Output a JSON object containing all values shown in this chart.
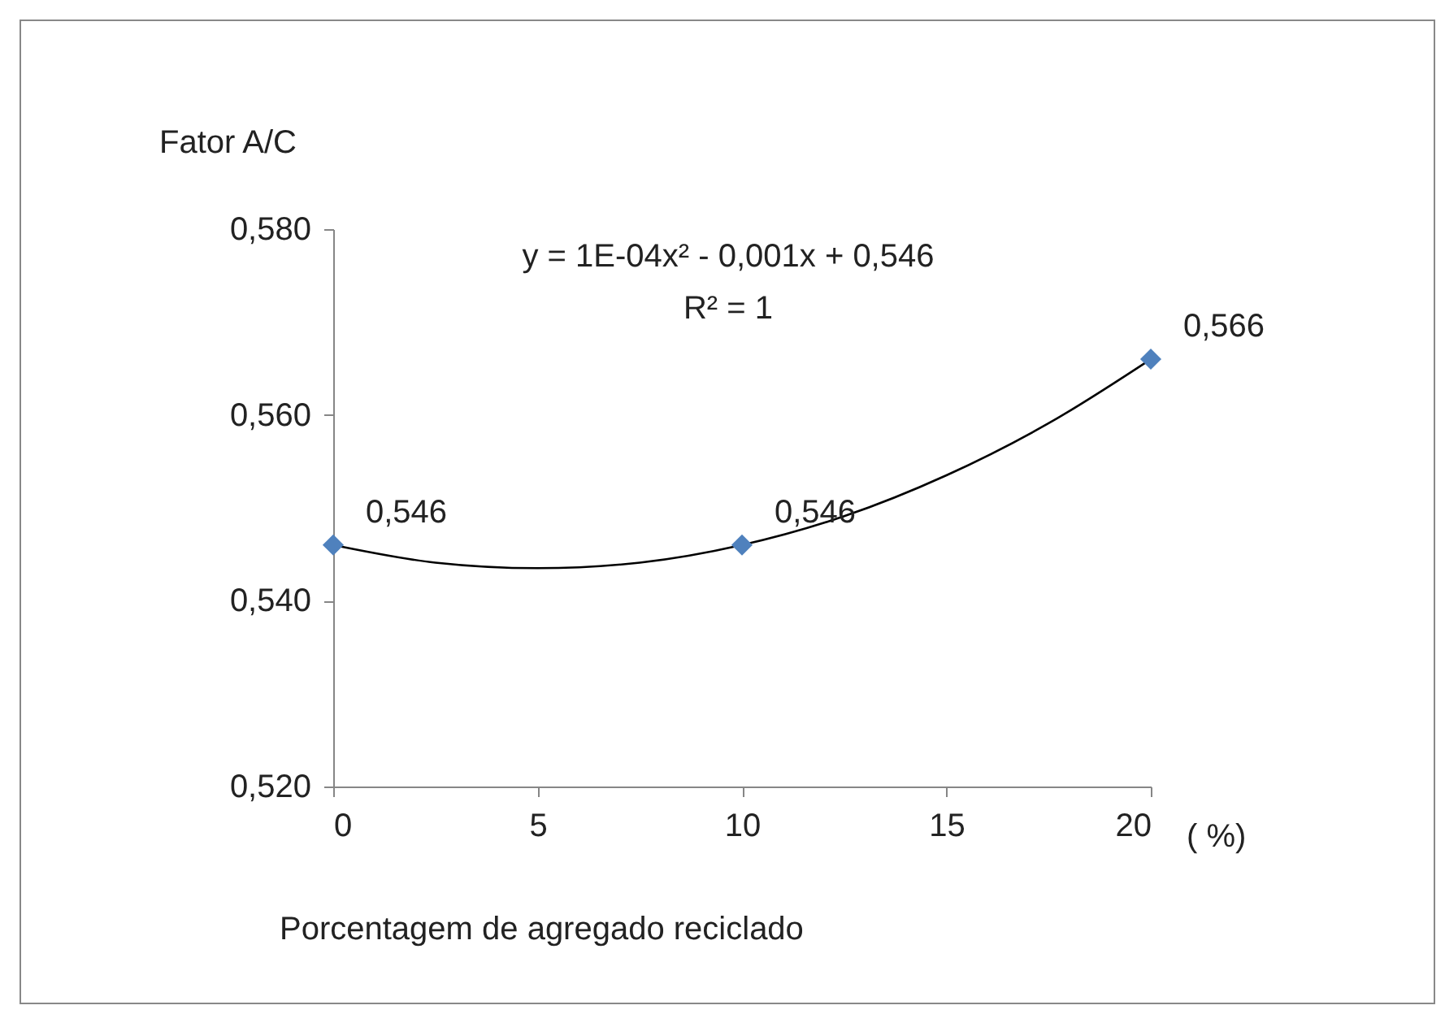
{
  "chart_data": {
    "type": "scatter",
    "xlabel": "Porcentagem de agregado reciclado",
    "ylabel": "Fator   A/C",
    "annotations": [
      "y = 1E-04x² - 0,001x + 0,546",
      "R² = 1",
      "( %)"
    ],
    "xlim": [
      0,
      20
    ],
    "xticks": [
      0,
      5,
      10,
      15,
      20
    ],
    "ylim": [
      0.52,
      0.58
    ],
    "yticks": [
      {
        "value": 0.52,
        "label": "0,520"
      },
      {
        "value": 0.54,
        "label": "0,540"
      },
      {
        "value": 0.56,
        "label": "0,560"
      },
      {
        "value": 0.58,
        "label": "0,580"
      }
    ],
    "series": [
      {
        "type": "line",
        "marker": "none",
        "color": "#000000",
        "x": [
          0,
          2.5,
          5,
          7.5,
          10,
          12.5,
          15,
          17.5,
          20
        ],
        "values": [
          0.546,
          0.5441,
          0.5435,
          0.5441,
          0.546,
          0.5491,
          0.5535,
          0.5591,
          0.566
        ]
      },
      {
        "marker": "diamond",
        "color": "#4f81bd",
        "x": [
          0,
          10,
          20
        ],
        "values": [
          0.546,
          0.546,
          0.566
        ],
        "value_labels": [
          "0,546",
          "0,546",
          "0,566"
        ]
      }
    ]
  }
}
